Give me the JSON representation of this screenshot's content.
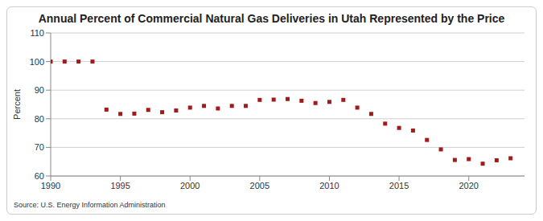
{
  "chart_data": {
    "type": "scatter",
    "title": "Annual Percent of Commercial Natural Gas Deliveries in Utah Represented by the Price",
    "y_label": "Percent",
    "source": "Source: U.S. Energy Information Administration",
    "x": [
      1990,
      1991,
      1992,
      1993,
      1994,
      1995,
      1996,
      1997,
      1998,
      1999,
      2000,
      2001,
      2002,
      2003,
      2004,
      2005,
      2006,
      2007,
      2008,
      2009,
      2010,
      2011,
      2012,
      2013,
      2014,
      2015,
      2016,
      2017,
      2018,
      2019,
      2020,
      2021,
      2022,
      2023
    ],
    "values": [
      100,
      100,
      100,
      100,
      83.2,
      81.7,
      81.8,
      83.1,
      82.3,
      82.9,
      83.9,
      84.5,
      83.6,
      84.5,
      84.5,
      86.6,
      86.7,
      86.9,
      86.3,
      85.5,
      85.9,
      86.6,
      83.9,
      81.7,
      78.3,
      76.8,
      75.9,
      72.6,
      69.3,
      65.6,
      65.9,
      64.3,
      65.5,
      66.2
    ],
    "color": "#a01c1c",
    "marker": "square",
    "xlim": [
      1990,
      2024
    ],
    "xticks": [
      1990,
      1995,
      2000,
      2005,
      2010,
      2015,
      2020
    ],
    "ylim": [
      60,
      110
    ],
    "yticks": [
      60,
      70,
      80,
      90,
      100,
      110
    ],
    "grid": true
  }
}
